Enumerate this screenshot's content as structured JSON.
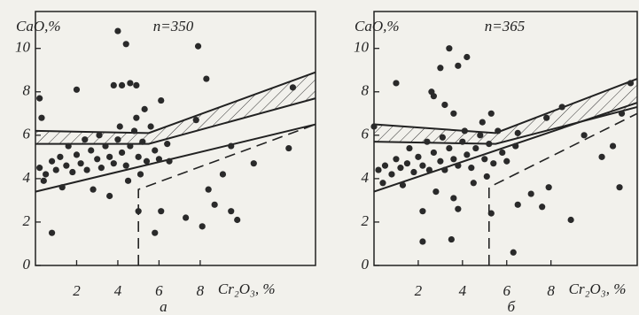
{
  "chart_data": [
    {
      "type": "scatter",
      "annotation": "n=350",
      "panel_label": "а",
      "x_label": "Cr₂O₃, %",
      "y_label": "CaO,%",
      "xlim": [
        0,
        13.6
      ],
      "ylim": [
        0,
        11.7
      ],
      "xticks": [
        2,
        4,
        6,
        8
      ],
      "yticks": [
        0,
        2,
        4,
        6,
        8,
        10
      ],
      "color": "#2a2a2a",
      "x": [
        0.2,
        0.3,
        2,
        4,
        4.4,
        3.8,
        4.2,
        4.6,
        4.9,
        6.1,
        7.9,
        8.3,
        12.5,
        12.3,
        0.8,
        5,
        5.8,
        6.1,
        7.3,
        8.4,
        8.7,
        9.8,
        9.5,
        8.1,
        6.5,
        7.8,
        9.5,
        10.6,
        9.1,
        0.2,
        0.5,
        0.8,
        1,
        1.2,
        1.5,
        1.8,
        2,
        2.2,
        2.5,
        2.7,
        3,
        3.2,
        3.4,
        3.6,
        3.8,
        4,
        4.2,
        4.4,
        4.6,
        4.8,
        5,
        5.2,
        5.4,
        5.6,
        5.8,
        6,
        6.4,
        0.4,
        1.3,
        2.8,
        3.6,
        4.5,
        5.1,
        1.6,
        2.4,
        3.1,
        4.1,
        4.9,
        5.3
      ],
      "y": [
        7.7,
        6.8,
        8.1,
        10.8,
        10.2,
        8.3,
        8.3,
        8.4,
        8.3,
        7.6,
        10.1,
        8.6,
        8.2,
        5.4,
        1.5,
        2.5,
        1.5,
        2.5,
        2.2,
        3.5,
        2.8,
        2.1,
        2.5,
        1.8,
        4.8,
        6.7,
        5.5,
        4.7,
        4.2,
        4.5,
        4.2,
        4.8,
        4.4,
        5,
        4.6,
        4.3,
        5.1,
        4.7,
        4.4,
        5.3,
        4.9,
        4.5,
        5.5,
        5,
        4.7,
        5.8,
        5.2,
        4.6,
        5.5,
        6.2,
        5,
        5.7,
        4.8,
        6.4,
        5.3,
        4.9,
        5.6,
        3.9,
        3.6,
        3.5,
        3.2,
        3.9,
        4.2,
        5.5,
        5.8,
        6,
        6.4,
        6.8,
        7.2
      ],
      "band": {
        "x": [
          0,
          5.5,
          13.6
        ],
        "upper": [
          6.2,
          6.1,
          8.9
        ],
        "lower": [
          5.6,
          5.6,
          7.7
        ]
      },
      "line": {
        "x": [
          0,
          13.6
        ],
        "y": [
          3.4,
          6.5
        ]
      },
      "dashed": {
        "x": [
          5,
          5,
          13.6
        ],
        "y": [
          0,
          3.5,
          6.5
        ]
      }
    },
    {
      "type": "scatter",
      "annotation": "n=365",
      "panel_label": "б",
      "x_label": "Cr₂O₃, %",
      "y_label": "CaO,%",
      "xlim": [
        0,
        11.9
      ],
      "ylim": [
        0,
        11.7
      ],
      "xticks": [
        2,
        4,
        6,
        8
      ],
      "yticks": [
        0,
        2,
        4,
        6,
        8,
        10
      ],
      "color": "#2a2a2a",
      "x": [
        3.4,
        3.8,
        4.2,
        3,
        3.2,
        3.6,
        2.6,
        2.7,
        1,
        0,
        11.6,
        8.5,
        11.2,
        2.2,
        3.8,
        5.3,
        6.5,
        6.3,
        7.6,
        8.9,
        3.5,
        2.2,
        7.1,
        7.9,
        10.3,
        10.8,
        11.1,
        9.5,
        7.8,
        6.5,
        0.2,
        0.5,
        0.8,
        1,
        1.2,
        1.5,
        1.8,
        2,
        2.2,
        2.5,
        2.7,
        3,
        3.2,
        3.4,
        3.6,
        3.8,
        4,
        4.2,
        4.4,
        4.6,
        4.8,
        5,
        5.2,
        5.4,
        5.6,
        5.8,
        6,
        6.4,
        0.4,
        1.3,
        2.8,
        3.6,
        4.5,
        5.1,
        1.6,
        2.4,
        3.1,
        4.1,
        4.9,
        5.3
      ],
      "y": [
        10,
        9.2,
        9.6,
        9.1,
        7.4,
        7,
        8,
        7.8,
        8.4,
        6.4,
        8.4,
        7.3,
        7,
        2.5,
        2.6,
        2.4,
        2.8,
        0.6,
        2.7,
        2.1,
        1.2,
        1.1,
        3.3,
        3.6,
        5,
        5.5,
        3.6,
        6,
        6.8,
        6.1,
        4.4,
        4.6,
        4.2,
        4.9,
        4.5,
        4.7,
        4.3,
        5,
        4.6,
        4.4,
        5.2,
        4.8,
        4.4,
        5.4,
        4.9,
        4.6,
        5.7,
        5.1,
        4.5,
        5.4,
        6,
        4.9,
        5.6,
        4.7,
        6.2,
        5.2,
        4.8,
        5.5,
        3.8,
        3.7,
        3.4,
        3.1,
        3.8,
        4.1,
        5.4,
        5.7,
        5.9,
        6.2,
        6.6,
        7
      ],
      "band": {
        "x": [
          0,
          5.5,
          11.9
        ],
        "upper": [
          6.5,
          6.1,
          8.6
        ],
        "lower": [
          5.7,
          5.6,
          7.3
        ]
      },
      "line": {
        "x": [
          0,
          11.9
        ],
        "y": [
          3.4,
          7.5
        ]
      },
      "dashed": {
        "x": [
          5.2,
          5.2,
          11.9
        ],
        "y": [
          0,
          3.6,
          7
        ]
      }
    }
  ]
}
